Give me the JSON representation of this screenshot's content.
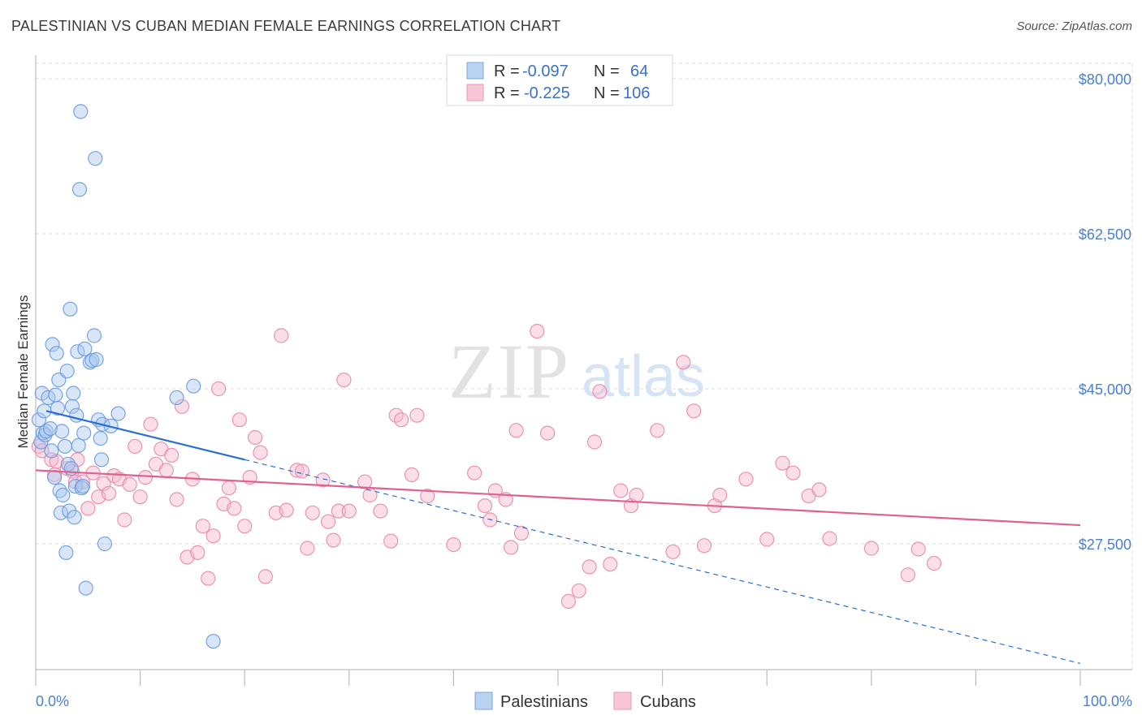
{
  "title": "PALESTINIAN VS CUBAN MEDIAN FEMALE EARNINGS CORRELATION CHART",
  "source": "Source: ZipAtlas.com",
  "watermark": {
    "zip": "ZIP",
    "atlas": "atlas"
  },
  "colors": {
    "blue_fill": "#a9c8f0",
    "blue_stroke": "#6a9be0",
    "blue_line": "#2a6fd0",
    "pink_fill": "#f5b8cc",
    "pink_stroke": "#e98aa8",
    "pink_line": "#e06090",
    "grid": "#dcdcdc",
    "tick_text": "#4a7fd4"
  },
  "chart_data": {
    "type": "scatter",
    "title": "PALESTINIAN VS CUBAN MEDIAN FEMALE EARNINGS CORRELATION CHART",
    "xlabel": "",
    "ylabel": "Median Female Earnings",
    "xlim": [
      0,
      100
    ],
    "ylim": [
      12000,
      84000
    ],
    "x_tick_labels": [
      "0.0%",
      "100.0%"
    ],
    "y_ticks": [
      27500,
      45000,
      62500,
      80000
    ],
    "y_tick_labels": [
      "$27,500",
      "$45,000",
      "$62,500",
      "$80,000"
    ],
    "legend": [
      {
        "name": "Palestinians",
        "R_label": "R =",
        "R": "-0.097",
        "N_label": "N =",
        "N": "64"
      },
      {
        "name": "Cubans",
        "R_label": "R =",
        "R": "-0.225",
        "N_label": "N =",
        "N": "106"
      }
    ],
    "series": [
      {
        "name": "Palestinians",
        "trend": {
          "x0": 1,
          "y0": 42500,
          "x1": 20,
          "y1": 37000,
          "dash_x1": 100,
          "dash_y1": 14000
        },
        "points": [
          [
            0.3,
            41500
          ],
          [
            0.5,
            39000
          ],
          [
            0.6,
            44500
          ],
          [
            0.7,
            40000
          ],
          [
            0.8,
            42500
          ],
          [
            0.9,
            39800
          ],
          [
            1.0,
            40200
          ],
          [
            1.2,
            44000
          ],
          [
            1.4,
            40500
          ],
          [
            1.5,
            38000
          ],
          [
            1.6,
            50000
          ],
          [
            1.8,
            35000
          ],
          [
            1.9,
            44300
          ],
          [
            2.0,
            49000
          ],
          [
            2.1,
            42800
          ],
          [
            2.2,
            46000
          ],
          [
            2.3,
            33500
          ],
          [
            2.4,
            31000
          ],
          [
            2.5,
            40200
          ],
          [
            2.6,
            33000
          ],
          [
            2.8,
            38500
          ],
          [
            2.9,
            26500
          ],
          [
            3.0,
            47000
          ],
          [
            3.1,
            36500
          ],
          [
            3.2,
            31200
          ],
          [
            3.3,
            54000
          ],
          [
            3.4,
            36000
          ],
          [
            3.5,
            43000
          ],
          [
            3.6,
            44500
          ],
          [
            3.7,
            30500
          ],
          [
            3.8,
            34000
          ],
          [
            3.9,
            42000
          ],
          [
            4.0,
            49200
          ],
          [
            4.1,
            38600
          ],
          [
            4.2,
            67500
          ],
          [
            4.3,
            76300
          ],
          [
            4.4,
            33800
          ],
          [
            4.5,
            34000
          ],
          [
            4.6,
            40000
          ],
          [
            4.7,
            49500
          ],
          [
            4.8,
            22500
          ],
          [
            5.2,
            48000
          ],
          [
            5.4,
            48200
          ],
          [
            5.6,
            51000
          ],
          [
            5.7,
            71000
          ],
          [
            5.8,
            48300
          ],
          [
            6.0,
            41500
          ],
          [
            6.2,
            39400
          ],
          [
            6.3,
            37000
          ],
          [
            6.4,
            41000
          ],
          [
            6.6,
            27500
          ],
          [
            7.2,
            40800
          ],
          [
            7.9,
            42200
          ],
          [
            13.5,
            44000
          ],
          [
            15.1,
            45300
          ],
          [
            17.0,
            16500
          ]
        ]
      },
      {
        "name": "Cubans",
        "trend": {
          "x0": 0,
          "y0": 35800,
          "x1": 100,
          "y1": 29600
        },
        "points": [
          [
            0.3,
            38500
          ],
          [
            0.6,
            38000
          ],
          [
            1.5,
            37000
          ],
          [
            1.8,
            35300
          ],
          [
            2.0,
            36800
          ],
          [
            3.0,
            36000
          ],
          [
            3.5,
            35700
          ],
          [
            3.8,
            34500
          ],
          [
            4.0,
            37000
          ],
          [
            4.5,
            34500
          ],
          [
            5.0,
            31500
          ],
          [
            5.5,
            35500
          ],
          [
            6.0,
            32800
          ],
          [
            6.5,
            34300
          ],
          [
            7.0,
            33200
          ],
          [
            7.5,
            35200
          ],
          [
            8.0,
            34800
          ],
          [
            8.5,
            30200
          ],
          [
            9.0,
            34200
          ],
          [
            9.5,
            38500
          ],
          [
            10.0,
            32800
          ],
          [
            10.5,
            35000
          ],
          [
            11.0,
            41000
          ],
          [
            11.5,
            36500
          ],
          [
            12.0,
            38200
          ],
          [
            12.5,
            35800
          ],
          [
            13.0,
            37500
          ],
          [
            13.5,
            32500
          ],
          [
            14.0,
            43000
          ],
          [
            14.5,
            26000
          ],
          [
            15.0,
            34800
          ],
          [
            15.5,
            26500
          ],
          [
            16.0,
            29500
          ],
          [
            16.5,
            23600
          ],
          [
            17.0,
            28400
          ],
          [
            17.5,
            45000
          ],
          [
            18.0,
            32000
          ],
          [
            18.5,
            33800
          ],
          [
            19.0,
            31500
          ],
          [
            19.5,
            41500
          ],
          [
            20.0,
            29500
          ],
          [
            20.5,
            35000
          ],
          [
            21.0,
            39500
          ],
          [
            21.5,
            37800
          ],
          [
            22.0,
            23800
          ],
          [
            23.0,
            31000
          ],
          [
            23.5,
            51000
          ],
          [
            24.0,
            31300
          ],
          [
            25.0,
            35800
          ],
          [
            25.5,
            35700
          ],
          [
            26.0,
            27000
          ],
          [
            26.5,
            31000
          ],
          [
            27.5,
            34700
          ],
          [
            28.0,
            30000
          ],
          [
            28.5,
            27900
          ],
          [
            29.0,
            31200
          ],
          [
            29.5,
            46000
          ],
          [
            30.0,
            31200
          ],
          [
            31.5,
            34500
          ],
          [
            32.0,
            33000
          ],
          [
            33.0,
            31200
          ],
          [
            34.0,
            27800
          ],
          [
            34.5,
            42000
          ],
          [
            35.0,
            41500
          ],
          [
            36.0,
            35300
          ],
          [
            36.5,
            42000
          ],
          [
            37.5,
            32900
          ],
          [
            40.0,
            27400
          ],
          [
            42.0,
            35500
          ],
          [
            43.0,
            31800
          ],
          [
            43.5,
            30200
          ],
          [
            44.0,
            33500
          ],
          [
            45.0,
            32500
          ],
          [
            45.5,
            27100
          ],
          [
            46.5,
            28700
          ],
          [
            46.0,
            40300
          ],
          [
            48.0,
            51500
          ],
          [
            49.0,
            40000
          ],
          [
            51.0,
            21000
          ],
          [
            52.0,
            22200
          ],
          [
            53.0,
            24900
          ],
          [
            53.5,
            39000
          ],
          [
            54.0,
            44700
          ],
          [
            55.0,
            25200
          ],
          [
            56.0,
            33500
          ],
          [
            57.0,
            31800
          ],
          [
            57.5,
            33000
          ],
          [
            59.5,
            40300
          ],
          [
            61.0,
            26600
          ],
          [
            62.0,
            48000
          ],
          [
            63.0,
            42500
          ],
          [
            64.0,
            27300
          ],
          [
            65.0,
            31800
          ],
          [
            65.5,
            33000
          ],
          [
            68.0,
            34800
          ],
          [
            70.0,
            28000
          ],
          [
            71.5,
            36600
          ],
          [
            72.5,
            35500
          ],
          [
            74.0,
            32900
          ],
          [
            75.0,
            33600
          ],
          [
            76.0,
            28100
          ],
          [
            80.0,
            27000
          ],
          [
            83.5,
            24000
          ],
          [
            84.5,
            26900
          ],
          [
            86.0,
            25300
          ]
        ]
      }
    ]
  }
}
